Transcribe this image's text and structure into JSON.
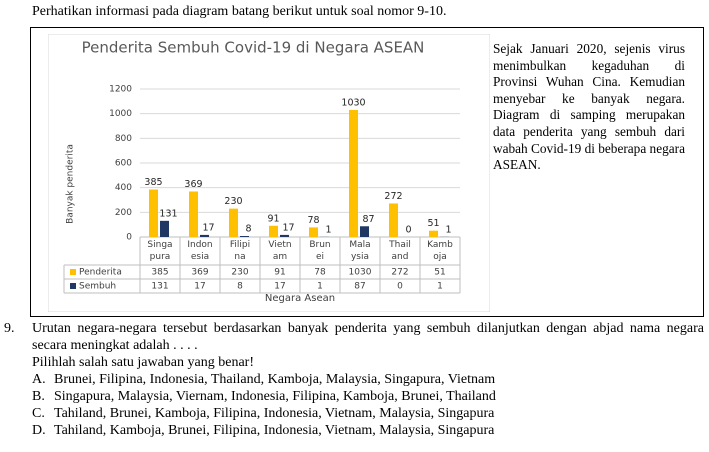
{
  "intro": "Perhatikan informasi pada diagram batang berikut untuk soal nomor 9-10.",
  "chart_data": {
    "type": "bar",
    "title": "Penderita Sembuh Covid-19 di Negara ASEAN",
    "y_label": "Banyak penderita",
    "x_label": "Negara Asean",
    "categories": [
      "Singa pura",
      "Indon esia",
      "Filipi na",
      "Vietn am",
      "Brun ei",
      "Mala ysia",
      "Thail and",
      "Kamb oja"
    ],
    "series": [
      {
        "name": "Penderita",
        "color": "#ffc000",
        "values": [
          385,
          369,
          230,
          91,
          78,
          1030,
          272,
          51
        ]
      },
      {
        "name": "Sembuh",
        "color": "#1f3864",
        "values": [
          131,
          17,
          8,
          17,
          1,
          87,
          0,
          1
        ]
      }
    ],
    "ylim": [
      0,
      1200
    ],
    "yticks": [
      0,
      200,
      400,
      600,
      800,
      1000,
      1200
    ],
    "grid": true
  },
  "side_text": "Sejak Januari 2020, sejenis virus menimbulkan kegaduhan di Provinsi Wuhan Cina. Kemudian menyebar ke banyak negara. Diagram di samping merupakan data penderita yang sembuh dari wabah Covid-19 di beberapa negara ASEAN.",
  "question": {
    "number": "9.",
    "text": "Urutan negara-negara tersebut berdasarkan banyak penderita yang sembuh dilanjutkan dengan abjad nama negara secara meningkat adalah . . . .",
    "instruction": "Pilihlah salah satu jawaban yang benar!",
    "options": [
      {
        "letter": "A.",
        "text": "Brunei, Filipina, Indonesia, Thailand, Kamboja, Malaysia, Singapura, Vietnam"
      },
      {
        "letter": "B.",
        "text": "Singapura, Malaysia, Viernam, Indonesia, Filipina, Kamboja, Brunei, Thailand"
      },
      {
        "letter": "C.",
        "text": "Tahiland, Brunei, Kamboja, Filipina, Indonesia, Vietnam, Malaysia, Singapura"
      },
      {
        "letter": "D.",
        "text": "Tahiland, Kamboja, Brunei, Filipina, Indonesia, Vietnam, Malaysia, Singapura"
      }
    ]
  }
}
